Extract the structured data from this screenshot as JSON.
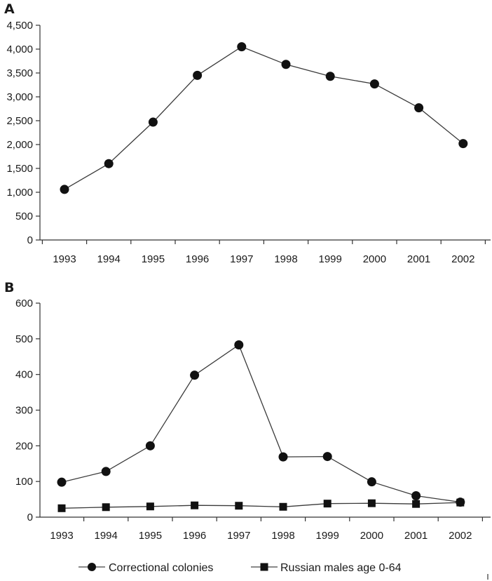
{
  "chart_data": [
    {
      "panel": "A",
      "type": "line",
      "categories": [
        "1993",
        "1994",
        "1995",
        "1996",
        "1997",
        "1998",
        "1999",
        "2000",
        "2001",
        "2002"
      ],
      "series": [
        {
          "values": [
            1060,
            1600,
            2470,
            3450,
            4050,
            3680,
            3430,
            3270,
            2770,
            2020
          ],
          "marker": "circle"
        }
      ],
      "ylim": [
        0,
        4500
      ],
      "yticks": [
        "0",
        "500",
        "1,000",
        "1,500",
        "2,000",
        "2,500",
        "3,000",
        "3,500",
        "4,000",
        "4,500"
      ],
      "grid": false,
      "legend": "none"
    },
    {
      "panel": "B",
      "type": "line",
      "categories": [
        "1993",
        "1994",
        "1995",
        "1996",
        "1997",
        "1998",
        "1999",
        "2000",
        "2001",
        "2002"
      ],
      "series": [
        {
          "name": "Correctional colonies",
          "values": [
            98,
            128,
            200,
            398,
            483,
            169,
            170,
            99,
            60,
            42
          ],
          "marker": "circle"
        },
        {
          "name": "Russian males age 0-64",
          "values": [
            25,
            28,
            30,
            33,
            32,
            29,
            38,
            39,
            37,
            41
          ],
          "marker": "square"
        }
      ],
      "ylim": [
        0,
        600
      ],
      "yticks": [
        "0",
        "100",
        "200",
        "300",
        "400",
        "500",
        "600"
      ],
      "grid": false,
      "legend": "bottom"
    }
  ]
}
